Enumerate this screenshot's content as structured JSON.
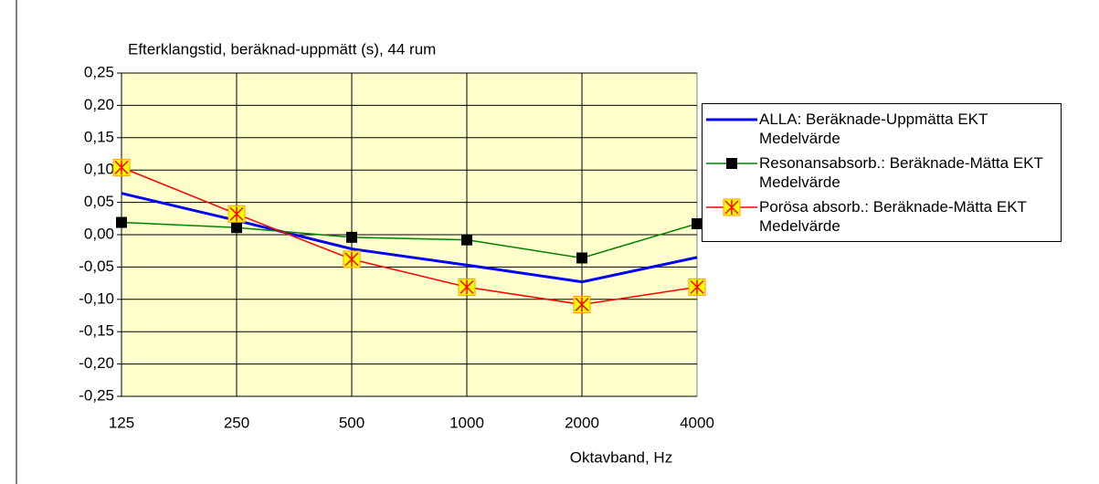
{
  "chart_data": {
    "type": "line",
    "title": "Efterklangstid, beräknad-uppmätt (s), 44 rum",
    "x_label": "Oktavband, Hz",
    "categories": [
      "125",
      "250",
      "500",
      "1000",
      "2000",
      "4000"
    ],
    "series": [
      {
        "name": "ALLA: Beräknade-Uppmätta EKT Medelvärde",
        "color": "#0000ff",
        "marker": "none",
        "values": [
          0.064,
          0.022,
          -0.022,
          -0.047,
          -0.073,
          -0.035
        ]
      },
      {
        "name": "Resonansabsorb.: Beräknade-Mätta EKT Medelvärde",
        "color": "#008000",
        "marker": "square",
        "values": [
          0.019,
          0.011,
          -0.004,
          -0.008,
          -0.036,
          0.017
        ]
      },
      {
        "name": "Porösa absorb.: Beräknade-Mätta EKT Medelvärde",
        "color": "#ff0000",
        "marker": "star",
        "values": [
          0.104,
          0.032,
          -0.038,
          -0.081,
          -0.108,
          -0.081
        ]
      }
    ],
    "ylim": [
      -0.25,
      0.25
    ],
    "yticks": [
      {
        "value": -0.25,
        "label": "-0,25"
      },
      {
        "value": -0.2,
        "label": "-0,20"
      },
      {
        "value": -0.15,
        "label": "-0,15"
      },
      {
        "value": -0.1,
        "label": "-0,10"
      },
      {
        "value": -0.05,
        "label": "-0,05"
      },
      {
        "value": 0,
        "label": "0,00"
      },
      {
        "value": 0.05,
        "label": "0,05"
      },
      {
        "value": 0.1,
        "label": "0,10"
      },
      {
        "value": 0.15,
        "label": "0,15"
      },
      {
        "value": 0.2,
        "label": "0,20"
      },
      {
        "value": 0.25,
        "label": "0,25"
      }
    ],
    "grid": true,
    "legend": "right"
  }
}
